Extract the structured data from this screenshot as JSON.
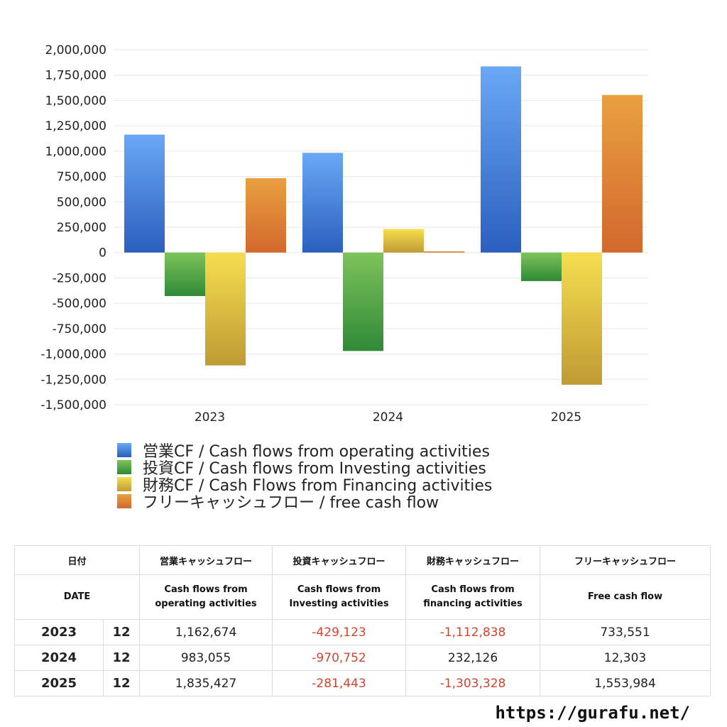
{
  "chart_data": {
    "type": "bar",
    "categories": [
      "2023",
      "2024",
      "2025"
    ],
    "ylim": [
      -1500000,
      2000000
    ],
    "yticks": [
      2000000,
      1750000,
      1500000,
      1250000,
      1000000,
      750000,
      500000,
      250000,
      0,
      -250000,
      -500000,
      -750000,
      -1000000,
      -1250000,
      -1500000
    ],
    "ytick_labels": [
      "2,000,000",
      "1,750,000",
      "1,500,000",
      "1,250,000",
      "1,000,000",
      "750,000",
      "500,000",
      "250,000",
      "0",
      "-250,000",
      "-500,000",
      "-750,000",
      "-1,000,000",
      "-1,250,000",
      "-1,500,000"
    ],
    "grid": true,
    "legend_position": "bottom-left",
    "series": [
      {
        "name": "営業CF / Cash flows from operating activities",
        "values": [
          1162674,
          983055,
          1835427
        ],
        "color_top": "#6aa8f5",
        "color_bottom": "#2b5fbf"
      },
      {
        "name": "投資CF / Cash flows from Investing activities",
        "values": [
          -429123,
          -970752,
          -281443
        ],
        "color_top": "#7dc35a",
        "color_bottom": "#2f8a36"
      },
      {
        "name": "財務CF / Cash Flows from Financing activities",
        "values": [
          -1112838,
          232126,
          -1303328
        ],
        "color_top": "#f6de4f",
        "color_bottom": "#bf9b33"
      },
      {
        "name": "フリーキャッシュフロー / free cash flow",
        "values": [
          733551,
          12303,
          1553984
        ],
        "color_top": "#e9a03f",
        "color_bottom": "#d2682d"
      }
    ]
  },
  "table": {
    "header1": [
      "日付",
      "営業キャッシュフロー",
      "投資キャッシュフロー",
      "財務キャッシュフロー",
      "フリーキャッシュフロー"
    ],
    "header2": [
      "DATE",
      "Cash flows from operating activities",
      "Cash flows from Investing activities",
      "Cash flows from financing activities",
      "Free cash flow"
    ],
    "header2_lines": [
      [
        "Cash flows from",
        "operating activities"
      ],
      [
        "Cash flows from",
        "Investing activities"
      ],
      [
        "Cash flows from",
        "financing activities"
      ]
    ],
    "rows": [
      {
        "year": "2023",
        "month": "12",
        "operating": "1,162,674",
        "investing": "-429,123",
        "financing": "-1,112,838",
        "free": "733,551"
      },
      {
        "year": "2024",
        "month": "12",
        "operating": "983,055",
        "investing": "-970,752",
        "financing": "232,126",
        "free": "12,303"
      },
      {
        "year": "2025",
        "month": "12",
        "operating": "1,835,427",
        "investing": "-281,443",
        "financing": "-1,303,328",
        "free": "1,553,984"
      }
    ],
    "negative_color": "#d0452f"
  },
  "footer": {
    "url": "https://gurafu.net/"
  }
}
